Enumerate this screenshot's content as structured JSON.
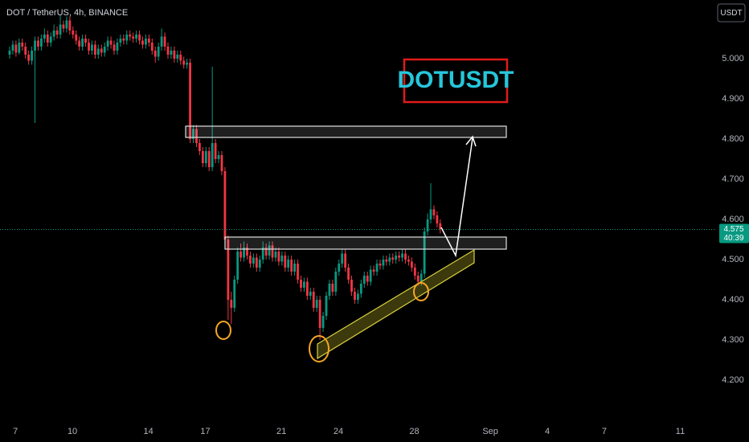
{
  "chart_data": {
    "type": "candlestick",
    "title": "DOT / TetherUS, 4h, BINANCE",
    "currency_button": "USDT",
    "annotation": "DOTUSDT",
    "last_price": 4.575,
    "countdown": "40:39",
    "up_color": "#089981",
    "down_color": "#f23645",
    "grid": false,
    "ylim": [
      4.106,
      5.146
    ],
    "yticks": [
      {
        "value": 4.2,
        "label": "4.200"
      },
      {
        "value": 4.3,
        "label": "4.300"
      },
      {
        "value": 4.4,
        "label": "4.400"
      },
      {
        "value": 4.5,
        "label": "4.500"
      },
      {
        "value": 4.6,
        "label": "4.600"
      },
      {
        "value": 4.7,
        "label": "4.700"
      },
      {
        "value": 4.8,
        "label": "4.800"
      },
      {
        "value": 4.9,
        "label": "4.900"
      },
      {
        "value": 5,
        "label": "5.000"
      }
    ],
    "xlim": [
      6.19,
      43.84
    ],
    "xticks": [
      7,
      10,
      14,
      17,
      21,
      24,
      28,
      {
        "value": 32,
        "label": "Sep"
      },
      {
        "value": 35,
        "label": "4"
      },
      {
        "value": 38,
        "label": "7"
      },
      {
        "value": 42,
        "label": "11"
      }
    ],
    "ohlc": [
      [
        5.01,
        5.03,
        5.0,
        5.02
      ],
      [
        5.02,
        5.045,
        5.01,
        5.035
      ],
      [
        5.035,
        5.045,
        5.005,
        5.015
      ],
      [
        5.015,
        5.05,
        5.01,
        5.04
      ],
      [
        5.04,
        5.05,
        5.02,
        5.03
      ],
      [
        5.03,
        5.04,
        5.0,
        5.01
      ],
      [
        5.01,
        5.02,
        4.985,
        4.995
      ],
      [
        4.995,
        5.03,
        4.985,
        5.02
      ],
      [
        5.02,
        5.055,
        4.84,
        5.045
      ],
      [
        5.045,
        5.055,
        5.02,
        5.03
      ],
      [
        5.03,
        5.06,
        5.02,
        5.05
      ],
      [
        5.05,
        5.075,
        5.04,
        5.06
      ],
      [
        5.06,
        5.07,
        5.03,
        5.04
      ],
      [
        5.04,
        5.065,
        5.03,
        5.055
      ],
      [
        5.055,
        5.085,
        5.045,
        5.07
      ],
      [
        5.07,
        5.08,
        5.05,
        5.06
      ],
      [
        5.06,
        5.11,
        5.05,
        5.085
      ],
      [
        5.085,
        5.095,
        5.065,
        5.075
      ],
      [
        5.075,
        5.105,
        5.065,
        5.095
      ],
      [
        5.095,
        5.105,
        5.06,
        5.07
      ],
      [
        5.07,
        5.08,
        5.05,
        5.06
      ],
      [
        5.06,
        5.07,
        5.035,
        5.045
      ],
      [
        5.045,
        5.055,
        5.02,
        5.03
      ],
      [
        5.03,
        5.06,
        5.02,
        5.05
      ],
      [
        5.05,
        5.06,
        5.03,
        5.04
      ],
      [
        5.04,
        5.05,
        5.01,
        5.02
      ],
      [
        5.02,
        5.045,
        5.01,
        5.035
      ],
      [
        5.035,
        5.045,
        5.0,
        5.01
      ],
      [
        5.01,
        5.035,
        5.0,
        5.025
      ],
      [
        5.025,
        5.035,
        5.005,
        5.015
      ],
      [
        5.015,
        5.04,
        5.005,
        5.03
      ],
      [
        5.03,
        5.055,
        5.02,
        5.045
      ],
      [
        5.045,
        5.055,
        5.025,
        5.035
      ],
      [
        5.035,
        5.045,
        5.01,
        5.02
      ],
      [
        5.02,
        5.05,
        5.01,
        5.04
      ],
      [
        5.04,
        5.06,
        5.03,
        5.05
      ],
      [
        5.05,
        5.06,
        5.035,
        5.045
      ],
      [
        5.045,
        5.07,
        5.035,
        5.06
      ],
      [
        5.06,
        5.07,
        5.045,
        5.055
      ],
      [
        5.055,
        5.065,
        5.04,
        5.05
      ],
      [
        5.05,
        5.07,
        5.04,
        5.06
      ],
      [
        5.06,
        5.07,
        5.035,
        5.045
      ],
      [
        5.045,
        5.055,
        5.025,
        5.035
      ],
      [
        5.035,
        5.06,
        5.025,
        5.05
      ],
      [
        5.05,
        5.06,
        5.03,
        5.04
      ],
      [
        5.04,
        5.05,
        5.01,
        5.02
      ],
      [
        5.02,
        5.03,
        4.99,
        5.005
      ],
      [
        5.005,
        5.04,
        4.995,
        5.03
      ],
      [
        5.03,
        5.075,
        5.02,
        5.055
      ],
      [
        5.055,
        5.065,
        5.02,
        5.03
      ],
      [
        5.03,
        5.04,
        5.0,
        5.01
      ],
      [
        5.01,
        5.03,
        5.0,
        5.02
      ],
      [
        5.02,
        5.03,
        4.99,
        5.0
      ],
      [
        5.0,
        5.02,
        4.99,
        5.01
      ],
      [
        5.01,
        5.02,
        4.985,
        4.995
      ],
      [
        4.995,
        5.005,
        4.975,
        4.985
      ],
      [
        4.985,
        5.0,
        4.975,
        4.99
      ],
      [
        4.99,
        5.0,
        4.79,
        4.8
      ],
      [
        4.8,
        4.835,
        4.79,
        4.825
      ],
      [
        4.825,
        4.835,
        4.78,
        4.79
      ],
      [
        4.79,
        4.8,
        4.76,
        4.77
      ],
      [
        4.77,
        4.78,
        4.73,
        4.74
      ],
      [
        4.74,
        4.78,
        4.73,
        4.77
      ],
      [
        4.77,
        4.78,
        4.72,
        4.73
      ],
      [
        4.73,
        4.98,
        4.72,
        4.79
      ],
      [
        4.79,
        4.8,
        4.74,
        4.75
      ],
      [
        4.75,
        4.77,
        4.74,
        4.76
      ],
      [
        4.76,
        4.77,
        4.71,
        4.72
      ],
      [
        4.72,
        4.73,
        4.54,
        4.55
      ],
      [
        4.55,
        4.56,
        4.35,
        4.4
      ],
      [
        4.4,
        4.42,
        4.34,
        4.38
      ],
      [
        4.38,
        4.46,
        4.37,
        4.45
      ],
      [
        4.45,
        4.53,
        4.44,
        4.52
      ],
      [
        4.52,
        4.54,
        4.495,
        4.505
      ],
      [
        4.505,
        4.545,
        4.495,
        4.53
      ],
      [
        4.53,
        4.54,
        4.5,
        4.51
      ],
      [
        4.51,
        4.52,
        4.48,
        4.49
      ],
      [
        4.49,
        4.515,
        4.48,
        4.505
      ],
      [
        4.505,
        4.515,
        4.47,
        4.48
      ],
      [
        4.48,
        4.51,
        4.47,
        4.5
      ],
      [
        4.5,
        4.545,
        4.49,
        4.53
      ],
      [
        4.53,
        4.54,
        4.5,
        4.51
      ],
      [
        4.51,
        4.545,
        4.5,
        4.535
      ],
      [
        4.535,
        4.545,
        4.495,
        4.505
      ],
      [
        4.505,
        4.53,
        4.495,
        4.52
      ],
      [
        4.52,
        4.53,
        4.485,
        4.495
      ],
      [
        4.495,
        4.52,
        4.485,
        4.51
      ],
      [
        4.51,
        4.52,
        4.47,
        4.48
      ],
      [
        4.48,
        4.51,
        4.47,
        4.5
      ],
      [
        4.5,
        4.51,
        4.46,
        4.47
      ],
      [
        4.47,
        4.5,
        4.46,
        4.49
      ],
      [
        4.49,
        4.5,
        4.44,
        4.45
      ],
      [
        4.45,
        4.46,
        4.42,
        4.43
      ],
      [
        4.43,
        4.455,
        4.42,
        4.445
      ],
      [
        4.445,
        4.455,
        4.4,
        4.41
      ],
      [
        4.41,
        4.43,
        4.4,
        4.42
      ],
      [
        4.42,
        4.43,
        4.37,
        4.38
      ],
      [
        4.38,
        4.41,
        4.37,
        4.4
      ],
      [
        4.4,
        4.41,
        4.3,
        4.33
      ],
      [
        4.33,
        4.37,
        4.32,
        4.36
      ],
      [
        4.36,
        4.42,
        4.35,
        4.41
      ],
      [
        4.41,
        4.45,
        4.4,
        4.44
      ],
      [
        4.44,
        4.45,
        4.41,
        4.42
      ],
      [
        4.42,
        4.48,
        4.41,
        4.47
      ],
      [
        4.47,
        4.5,
        4.46,
        4.49
      ],
      [
        4.49,
        4.525,
        4.48,
        4.515
      ],
      [
        4.515,
        4.525,
        4.47,
        4.48
      ],
      [
        4.48,
        4.49,
        4.44,
        4.45
      ],
      [
        4.45,
        4.46,
        4.41,
        4.42
      ],
      [
        4.42,
        4.43,
        4.39,
        4.4
      ],
      [
        4.4,
        4.425,
        4.39,
        4.415
      ],
      [
        4.415,
        4.45,
        4.405,
        4.44
      ],
      [
        4.44,
        4.47,
        4.43,
        4.46
      ],
      [
        4.46,
        4.47,
        4.435,
        4.445
      ],
      [
        4.445,
        4.485,
        4.435,
        4.475
      ],
      [
        4.475,
        4.485,
        4.46,
        4.47
      ],
      [
        4.47,
        4.5,
        4.46,
        4.49
      ],
      [
        4.49,
        4.5,
        4.475,
        4.485
      ],
      [
        4.485,
        4.51,
        4.475,
        4.5
      ],
      [
        4.5,
        4.51,
        4.485,
        4.495
      ],
      [
        4.495,
        4.515,
        4.485,
        4.505
      ],
      [
        4.505,
        4.515,
        4.49,
        4.5
      ],
      [
        4.5,
        4.52,
        4.49,
        4.51
      ],
      [
        4.51,
        4.52,
        4.495,
        4.505
      ],
      [
        4.505,
        4.525,
        4.495,
        4.515
      ],
      [
        4.515,
        4.525,
        4.49,
        4.5
      ],
      [
        4.5,
        4.51,
        4.485,
        4.495
      ],
      [
        4.495,
        4.505,
        4.47,
        4.48
      ],
      [
        4.48,
        4.49,
        4.45,
        4.46
      ],
      [
        4.46,
        4.47,
        4.435,
        4.445
      ],
      [
        4.445,
        4.475,
        4.435,
        4.465
      ],
      [
        4.465,
        4.58,
        4.455,
        4.57
      ],
      [
        4.57,
        4.615,
        4.56,
        4.6
      ],
      [
        4.6,
        4.69,
        4.59,
        4.625
      ],
      [
        4.625,
        4.635,
        4.6,
        4.61
      ],
      [
        4.61,
        4.62,
        4.58,
        4.59
      ],
      [
        4.59,
        4.6,
        4.565,
        4.575
      ]
    ]
  }
}
